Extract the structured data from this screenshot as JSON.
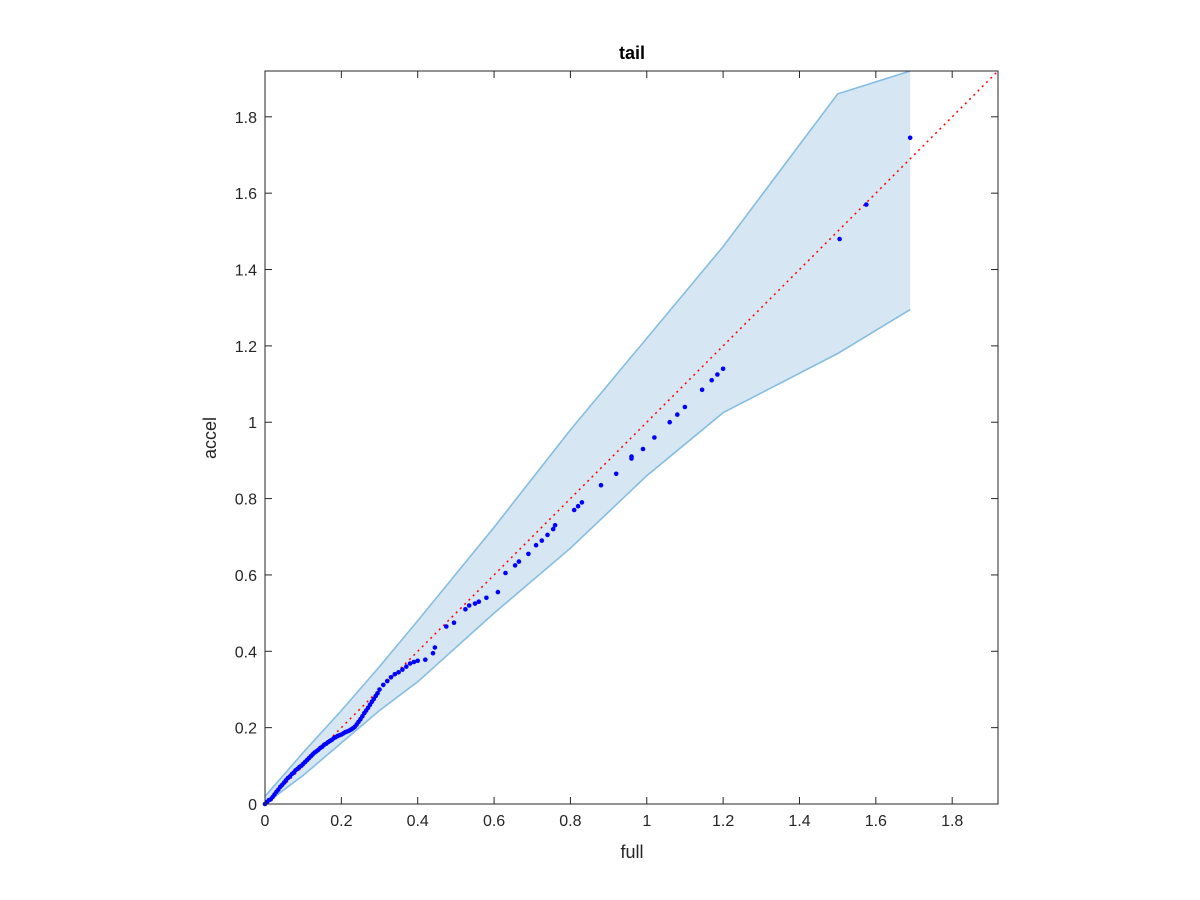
{
  "chart_data": {
    "type": "scatter",
    "title": "tail",
    "xlabel": "full",
    "ylabel": "accel",
    "xlim": [
      0,
      1.92
    ],
    "ylim": [
      0,
      1.92
    ],
    "xticks": [
      "0",
      "0.2",
      "0.4",
      "0.6",
      "0.8",
      "1",
      "1.2",
      "1.4",
      "1.6",
      "1.8"
    ],
    "yticks": [
      "0",
      "0.2",
      "0.4",
      "0.6",
      "0.8",
      "1",
      "1.2",
      "1.4",
      "1.6",
      "1.8"
    ],
    "grid": false,
    "colors": {
      "points": "#0000ff",
      "reference_line": "#ff0000",
      "band_fill": "#d6e6f3",
      "band_edge": "#86bde0",
      "axes": "#262626"
    },
    "reference_line": {
      "x": [
        0,
        1.92
      ],
      "y": [
        0,
        1.92
      ],
      "style": "dotted"
    },
    "band": {
      "x": [
        0.0,
        0.1,
        0.2,
        0.3,
        0.4,
        0.6,
        0.8,
        1.0,
        1.2,
        1.5,
        1.69
      ],
      "upper": [
        0.02,
        0.135,
        0.245,
        0.36,
        0.48,
        0.725,
        0.98,
        1.22,
        1.46,
        1.86,
        1.92
      ],
      "lower": [
        0.0,
        0.075,
        0.16,
        0.245,
        0.32,
        0.5,
        0.67,
        0.86,
        1.025,
        1.18,
        1.295
      ]
    },
    "points": {
      "x": [
        0.0,
        0.005,
        0.01,
        0.015,
        0.02,
        0.025,
        0.03,
        0.035,
        0.04,
        0.045,
        0.05,
        0.055,
        0.06,
        0.065,
        0.07,
        0.075,
        0.08,
        0.085,
        0.09,
        0.095,
        0.1,
        0.105,
        0.11,
        0.115,
        0.12,
        0.125,
        0.13,
        0.135,
        0.14,
        0.145,
        0.15,
        0.155,
        0.16,
        0.165,
        0.17,
        0.175,
        0.18,
        0.185,
        0.19,
        0.195,
        0.2,
        0.205,
        0.21,
        0.215,
        0.22,
        0.225,
        0.23,
        0.235,
        0.24,
        0.245,
        0.25,
        0.255,
        0.26,
        0.265,
        0.27,
        0.275,
        0.28,
        0.285,
        0.29,
        0.295,
        0.3,
        0.31,
        0.32,
        0.33,
        0.34,
        0.35,
        0.36,
        0.37,
        0.38,
        0.39,
        0.4,
        0.42,
        0.44,
        0.445,
        0.475,
        0.495,
        0.525,
        0.535,
        0.55,
        0.56,
        0.58,
        0.61,
        0.63,
        0.655,
        0.665,
        0.69,
        0.71,
        0.725,
        0.74,
        0.755,
        0.76,
        0.81,
        0.82,
        0.83,
        0.88,
        0.92,
        0.96,
        0.96,
        0.99,
        1.02,
        1.06,
        1.08,
        1.1,
        1.145,
        1.17,
        1.185,
        1.2,
        1.505,
        1.575,
        1.69
      ],
      "y": [
        0.0,
        0.005,
        0.01,
        0.012,
        0.018,
        0.025,
        0.032,
        0.038,
        0.045,
        0.05,
        0.056,
        0.062,
        0.068,
        0.072,
        0.078,
        0.082,
        0.088,
        0.092,
        0.097,
        0.1,
        0.105,
        0.11,
        0.115,
        0.12,
        0.125,
        0.13,
        0.135,
        0.138,
        0.142,
        0.147,
        0.15,
        0.155,
        0.158,
        0.162,
        0.165,
        0.168,
        0.172,
        0.175,
        0.178,
        0.18,
        0.182,
        0.185,
        0.188,
        0.19,
        0.192,
        0.195,
        0.198,
        0.202,
        0.208,
        0.215,
        0.222,
        0.23,
        0.238,
        0.245,
        0.252,
        0.26,
        0.268,
        0.275,
        0.283,
        0.29,
        0.3,
        0.312,
        0.322,
        0.332,
        0.34,
        0.345,
        0.352,
        0.36,
        0.368,
        0.372,
        0.375,
        0.378,
        0.395,
        0.41,
        0.465,
        0.475,
        0.51,
        0.52,
        0.525,
        0.53,
        0.54,
        0.555,
        0.605,
        0.625,
        0.635,
        0.655,
        0.678,
        0.69,
        0.705,
        0.72,
        0.73,
        0.77,
        0.78,
        0.79,
        0.835,
        0.865,
        0.905,
        0.91,
        0.93,
        0.96,
        1.0,
        1.02,
        1.04,
        1.085,
        1.11,
        1.125,
        1.14,
        1.48,
        1.57,
        1.745
      ]
    }
  }
}
